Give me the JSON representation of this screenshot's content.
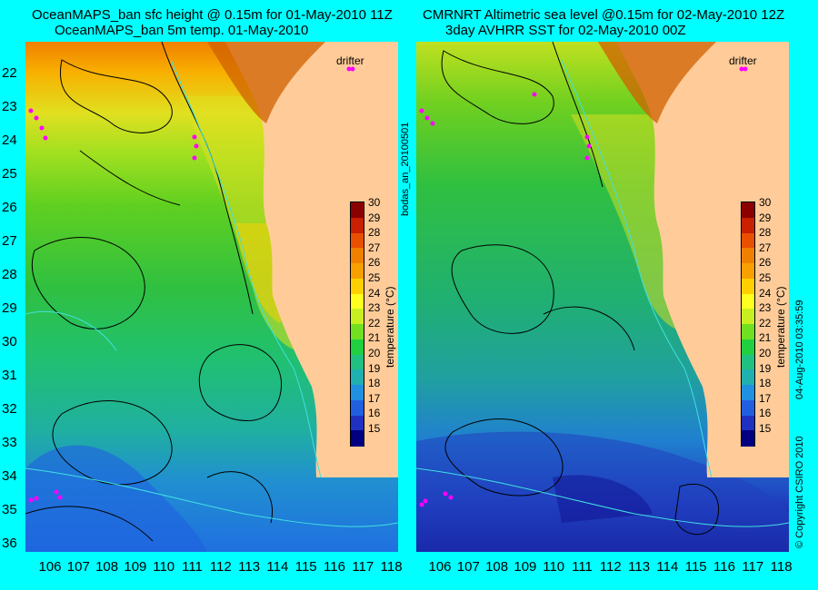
{
  "left_panel": {
    "title_line1": "OceanMAPS_ban sfc height @ 0.15m for 01-May-2010 11Z",
    "title_line2": "OceanMAPS_ban 5m temp. 01-May-2010",
    "drifter_label": "drifter"
  },
  "right_panel": {
    "title_line1": "CMRNRT Altimetric sea level  @0.15m  for 02-May-2010 12Z",
    "title_line2": "3day AVHRR SST for 02-May-2010 00Z",
    "drifter_label": "drifter"
  },
  "axes": {
    "lat_labels": [
      "22",
      "23",
      "24",
      "25",
      "26",
      "27",
      "28",
      "29",
      "30",
      "31",
      "32",
      "33",
      "34",
      "35",
      "36"
    ],
    "lon_labels": [
      "106",
      "107",
      "108",
      "109",
      "110",
      "111",
      "112",
      "113",
      "114",
      "115",
      "116",
      "117",
      "118"
    ]
  },
  "colorbar": {
    "label": "temperature (°C)",
    "ticks": [
      "30",
      "29",
      "28",
      "27",
      "26",
      "25",
      "24",
      "23",
      "22",
      "21",
      "20",
      "19",
      "18",
      "17",
      "16",
      "15"
    ],
    "colors": [
      "#8b0000",
      "#c82000",
      "#e85000",
      "#f08000",
      "#f8a000",
      "#ffd000",
      "#ffff20",
      "#c8f020",
      "#70e020",
      "#20d040",
      "#20c080",
      "#20b0b0",
      "#2090e0",
      "#2060e0",
      "#2030c0",
      "#000080"
    ]
  },
  "side_text": {
    "file_label": "bodas_an_20100501",
    "stamp": "04-Aug-2010 03:35:59",
    "copyright": "© Copyright CSIRO 2010"
  },
  "colors": {
    "background": "#00ffff",
    "land": "#ffcc99",
    "drifter": "#ff00ff"
  }
}
